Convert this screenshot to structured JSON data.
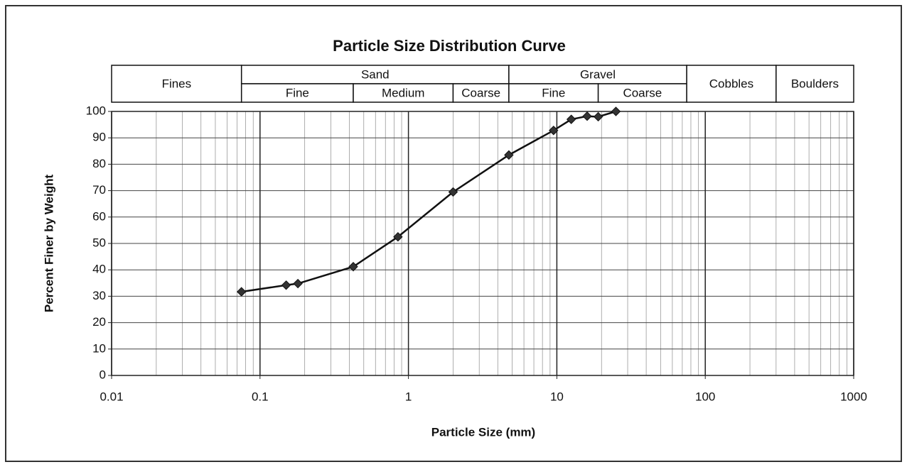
{
  "chart_data": {
    "type": "line",
    "title": "Particle Size Distribution Curve",
    "xlabel": "Particle Size (mm)",
    "ylabel": "Percent Finer by Weight",
    "x": [
      0.075,
      0.15,
      0.18,
      0.425,
      0.85,
      2,
      4.75,
      9.5,
      12.5,
      16,
      19,
      25
    ],
    "values": [
      31.7,
      34.2,
      34.8,
      41.2,
      52.5,
      69.5,
      83.5,
      92.8,
      97,
      98.2,
      98,
      100
    ],
    "color": "#111111",
    "log_x": true,
    "grid": true,
    "xlim": [
      0.01,
      1000
    ],
    "xticks": [
      0.01,
      0.1,
      1,
      10,
      100,
      1000
    ],
    "ylim": [
      0,
      100
    ],
    "yticks": [
      0,
      10,
      20,
      30,
      40,
      50,
      60,
      70,
      80,
      90,
      100
    ],
    "zones": [
      {
        "name": "Fines",
        "from": 0.01,
        "to": 0.075
      },
      {
        "name": "Sand",
        "from": 0.075,
        "to": 4.75,
        "parts": [
          {
            "name": "Fine",
            "from": 0.075,
            "to": 0.425
          },
          {
            "name": "Medium",
            "from": 0.425,
            "to": 2
          },
          {
            "name": "Coarse",
            "from": 2,
            "to": 4.75
          }
        ]
      },
      {
        "name": "Gravel",
        "from": 4.75,
        "to": 75,
        "parts": [
          {
            "name": "Fine",
            "from": 4.75,
            "to": 19
          },
          {
            "name": "Coarse",
            "from": 19,
            "to": 75
          }
        ]
      },
      {
        "name": "Cobbles",
        "from": 75,
        "to": 300
      },
      {
        "name": "Boulders",
        "from": 300,
        "to": 1000
      }
    ]
  }
}
